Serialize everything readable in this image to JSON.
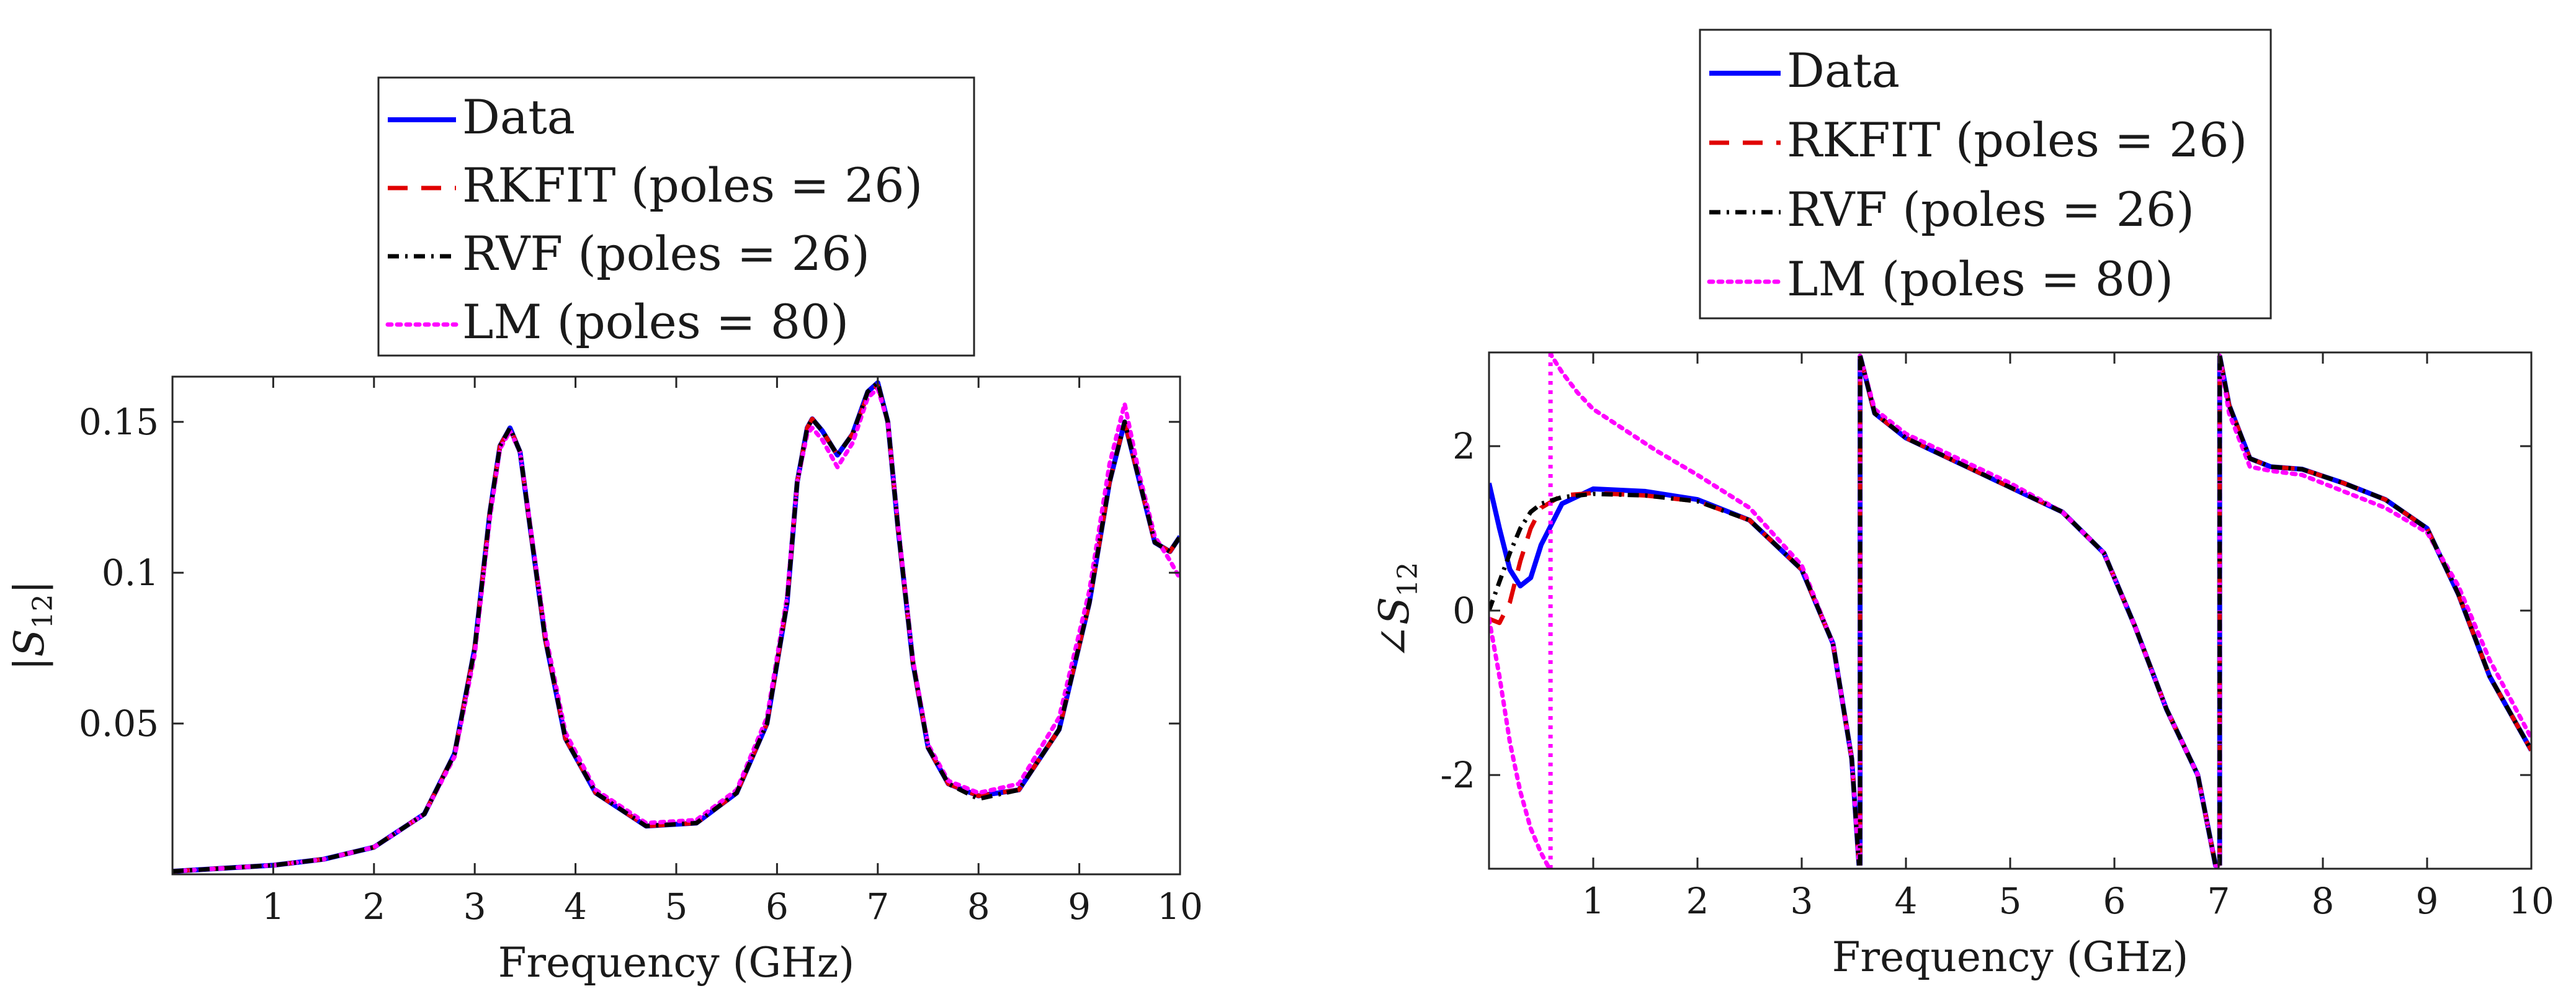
{
  "chart_data": [
    {
      "type": "line",
      "xlabel": "Frequency (GHz)",
      "ylabel": "|S",
      "ylabel_sub": "12",
      "ylabel_suffix": "|",
      "xlim": [
        0,
        10
      ],
      "ylim": [
        0,
        0.165
      ],
      "xticks": [
        1,
        2,
        3,
        4,
        5,
        6,
        7,
        8,
        9,
        10
      ],
      "xtick_labels": [
        "1",
        "2",
        "3",
        "4",
        "5",
        "6",
        "7",
        "8",
        "9",
        "10"
      ],
      "yticks": [
        0.05,
        0.1,
        0.15
      ],
      "ytick_labels": [
        "0.05",
        "0.1",
        "0.15"
      ],
      "grid": false,
      "legend_position": "top",
      "legend": [
        "Data",
        "RKFIT (poles = 26)",
        "RVF (poles = 26)",
        "LM (poles = 80)"
      ],
      "series": [
        {
          "name": "Data",
          "color": "#0000ff",
          "style": "solid",
          "x": [
            0,
            0.5,
            1,
            1.5,
            2,
            2.5,
            2.8,
            3.0,
            3.15,
            3.25,
            3.35,
            3.45,
            3.55,
            3.7,
            3.9,
            4.2,
            4.7,
            5.2,
            5.6,
            5.9,
            6.1,
            6.2,
            6.3,
            6.35,
            6.45,
            6.6,
            6.75,
            6.9,
            7.0,
            7.1,
            7.2,
            7.35,
            7.5,
            7.7,
            8.0,
            8.4,
            8.8,
            9.1,
            9.3,
            9.45,
            9.6,
            9.75,
            9.9,
            10
          ],
          "y": [
            0.001,
            0.002,
            0.003,
            0.005,
            0.009,
            0.02,
            0.04,
            0.075,
            0.12,
            0.142,
            0.148,
            0.14,
            0.115,
            0.078,
            0.045,
            0.027,
            0.016,
            0.017,
            0.027,
            0.05,
            0.09,
            0.13,
            0.148,
            0.151,
            0.147,
            0.139,
            0.146,
            0.16,
            0.163,
            0.15,
            0.115,
            0.07,
            0.042,
            0.03,
            0.026,
            0.028,
            0.048,
            0.09,
            0.13,
            0.15,
            0.13,
            0.11,
            0.107,
            0.112
          ]
        },
        {
          "name": "RKFIT (poles = 26)",
          "color": "#e00000",
          "style": "dashed",
          "x": [
            0,
            0.5,
            1,
            1.5,
            2,
            2.5,
            2.8,
            3.0,
            3.15,
            3.25,
            3.35,
            3.45,
            3.55,
            3.7,
            3.9,
            4.2,
            4.7,
            5.2,
            5.6,
            5.9,
            6.1,
            6.2,
            6.3,
            6.35,
            6.45,
            6.6,
            6.75,
            6.9,
            7.0,
            7.1,
            7.2,
            7.35,
            7.5,
            7.7,
            8.0,
            8.4,
            8.8,
            9.1,
            9.3,
            9.45,
            9.6,
            9.75,
            9.9,
            10
          ],
          "y": [
            0.001,
            0.002,
            0.003,
            0.005,
            0.009,
            0.02,
            0.04,
            0.075,
            0.12,
            0.142,
            0.148,
            0.14,
            0.115,
            0.078,
            0.045,
            0.027,
            0.016,
            0.017,
            0.027,
            0.05,
            0.09,
            0.13,
            0.148,
            0.151,
            0.147,
            0.139,
            0.146,
            0.159,
            0.162,
            0.15,
            0.115,
            0.07,
            0.042,
            0.03,
            0.026,
            0.028,
            0.048,
            0.09,
            0.13,
            0.15,
            0.13,
            0.11,
            0.107,
            0.112
          ]
        },
        {
          "name": "RVF (poles = 26)",
          "color": "#000000",
          "style": "dashdot",
          "x": [
            0,
            0.5,
            1,
            1.5,
            2,
            2.5,
            2.8,
            3.0,
            3.15,
            3.25,
            3.35,
            3.45,
            3.55,
            3.7,
            3.9,
            4.2,
            4.7,
            5.2,
            5.6,
            5.9,
            6.1,
            6.2,
            6.3,
            6.35,
            6.45,
            6.6,
            6.75,
            6.9,
            7.0,
            7.1,
            7.2,
            7.35,
            7.5,
            7.7,
            8.0,
            8.4,
            8.8,
            9.1,
            9.3,
            9.45,
            9.6,
            9.75,
            9.9,
            10
          ],
          "y": [
            0.001,
            0.002,
            0.003,
            0.005,
            0.009,
            0.02,
            0.04,
            0.075,
            0.12,
            0.142,
            0.148,
            0.14,
            0.115,
            0.078,
            0.045,
            0.027,
            0.016,
            0.017,
            0.027,
            0.05,
            0.09,
            0.13,
            0.148,
            0.151,
            0.147,
            0.139,
            0.146,
            0.16,
            0.163,
            0.15,
            0.115,
            0.07,
            0.042,
            0.03,
            0.025,
            0.028,
            0.048,
            0.09,
            0.13,
            0.15,
            0.13,
            0.11,
            0.107,
            0.112
          ]
        },
        {
          "name": "LM (poles = 80)",
          "color": "#ff00ff",
          "style": "dotted",
          "x": [
            0,
            0.5,
            1,
            1.5,
            2,
            2.5,
            2.8,
            3.0,
            3.15,
            3.25,
            3.35,
            3.45,
            3.55,
            3.7,
            3.9,
            4.2,
            4.7,
            5.2,
            5.6,
            5.9,
            6.1,
            6.2,
            6.3,
            6.35,
            6.45,
            6.6,
            6.75,
            6.9,
            7.0,
            7.1,
            7.2,
            7.35,
            7.5,
            7.7,
            8.0,
            8.4,
            8.8,
            9.1,
            9.3,
            9.45,
            9.6,
            9.75,
            9.9,
            10
          ],
          "y": [
            0.001,
            0.002,
            0.003,
            0.005,
            0.009,
            0.02,
            0.039,
            0.073,
            0.118,
            0.141,
            0.147,
            0.14,
            0.116,
            0.08,
            0.047,
            0.028,
            0.017,
            0.018,
            0.028,
            0.052,
            0.092,
            0.13,
            0.146,
            0.148,
            0.144,
            0.135,
            0.143,
            0.158,
            0.161,
            0.15,
            0.116,
            0.071,
            0.043,
            0.031,
            0.027,
            0.03,
            0.052,
            0.094,
            0.136,
            0.156,
            0.132,
            0.112,
            0.104,
            0.098
          ]
        }
      ]
    },
    {
      "type": "line",
      "xlabel": "Frequency (GHz)",
      "ylabel": "∠S",
      "ylabel_sub": "12",
      "ylabel_suffix": "",
      "xlim": [
        0,
        10
      ],
      "ylim": [
        -3.14,
        3.14
      ],
      "xticks": [
        1,
        2,
        3,
        4,
        5,
        6,
        7,
        8,
        9,
        10
      ],
      "xtick_labels": [
        "1",
        "2",
        "3",
        "4",
        "5",
        "6",
        "7",
        "8",
        "9",
        "10"
      ],
      "yticks": [
        -2,
        0,
        2
      ],
      "ytick_labels": [
        "-2",
        "0",
        "2"
      ],
      "grid": false,
      "legend_position": "top",
      "legend": [
        "Data",
        "RKFIT (poles = 26)",
        "RVF (poles = 26)",
        "LM (poles = 80)"
      ],
      "series": [
        {
          "name": "Data",
          "color": "#0000ff",
          "style": "solid",
          "x": [
            0,
            0.1,
            0.2,
            0.3,
            0.4,
            0.5,
            0.7,
            1.0,
            1.5,
            2.0,
            2.5,
            3.0,
            3.3,
            3.48,
            3.55,
            3.56,
            3.7,
            4.0,
            4.5,
            5.0,
            5.5,
            5.9,
            6.2,
            6.5,
            6.8,
            6.97,
            7.0,
            7.01,
            7.1,
            7.3,
            7.5,
            7.8,
            8.2,
            8.6,
            9.0,
            9.3,
            9.6,
            10
          ],
          "y": [
            1.55,
            1.0,
            0.5,
            0.3,
            0.4,
            0.8,
            1.3,
            1.48,
            1.45,
            1.35,
            1.1,
            0.5,
            -0.4,
            -1.8,
            -3.1,
            3.1,
            2.4,
            2.1,
            1.8,
            1.5,
            1.2,
            0.7,
            -0.2,
            -1.2,
            -2.0,
            -3.1,
            -3.1,
            3.1,
            2.5,
            1.85,
            1.75,
            1.72,
            1.55,
            1.35,
            1.0,
            0.2,
            -0.8,
            -1.7
          ]
        },
        {
          "name": "RKFIT (poles = 26)",
          "color": "#e00000",
          "style": "dashed",
          "x": [
            0,
            0.1,
            0.2,
            0.3,
            0.4,
            0.5,
            0.7,
            1.0,
            1.5,
            2.0,
            2.5,
            3.0,
            3.3,
            3.48,
            3.55,
            3.56,
            3.7,
            4.0,
            4.5,
            5.0,
            5.5,
            5.9,
            6.2,
            6.5,
            6.8,
            6.97,
            7.0,
            7.01,
            7.1,
            7.3,
            7.5,
            7.8,
            8.2,
            8.6,
            9.0,
            9.3,
            9.6,
            10
          ],
          "y": [
            -0.1,
            -0.15,
            0.1,
            0.6,
            1.0,
            1.25,
            1.4,
            1.43,
            1.4,
            1.33,
            1.1,
            0.5,
            -0.4,
            -1.8,
            -3.1,
            3.1,
            2.4,
            2.1,
            1.8,
            1.5,
            1.2,
            0.7,
            -0.2,
            -1.2,
            -2.0,
            -3.1,
            -3.1,
            3.1,
            2.5,
            1.85,
            1.75,
            1.72,
            1.55,
            1.35,
            1.0,
            0.2,
            -0.8,
            -1.7
          ]
        },
        {
          "name": "RVF (poles = 26)",
          "color": "#000000",
          "style": "dashdot",
          "x": [
            0,
            0.1,
            0.2,
            0.3,
            0.4,
            0.5,
            0.7,
            1.0,
            1.5,
            2.0,
            2.5,
            3.0,
            3.3,
            3.48,
            3.55,
            3.56,
            3.7,
            4.0,
            4.5,
            5.0,
            5.5,
            5.9,
            6.2,
            6.5,
            6.8,
            6.97,
            7.0,
            7.01,
            7.1,
            7.3,
            7.5,
            7.8,
            8.2,
            8.6,
            9.0,
            9.3,
            9.6,
            10
          ],
          "y": [
            0.0,
            0.35,
            0.7,
            1.0,
            1.2,
            1.3,
            1.38,
            1.42,
            1.4,
            1.33,
            1.1,
            0.5,
            -0.4,
            -1.8,
            -3.1,
            3.1,
            2.4,
            2.1,
            1.8,
            1.5,
            1.2,
            0.7,
            -0.2,
            -1.2,
            -2.0,
            -3.1,
            -3.1,
            3.1,
            2.5,
            1.85,
            1.75,
            1.72,
            1.55,
            1.35,
            1.0,
            0.2,
            -0.8,
            -1.7
          ]
        },
        {
          "name": "LM (poles = 80)",
          "color": "#ff00ff",
          "style": "dotted",
          "x": [
            0,
            0.1,
            0.2,
            0.3,
            0.4,
            0.5,
            0.58,
            0.59,
            0.6,
            0.7,
            0.85,
            1.0,
            1.3,
            1.6,
            2.0,
            2.5,
            3.0,
            3.3,
            3.48,
            3.55,
            3.56,
            3.7,
            4.0,
            4.5,
            5.0,
            5.5,
            5.9,
            6.2,
            6.5,
            6.8,
            6.97,
            7.0,
            7.01,
            7.1,
            7.3,
            7.5,
            7.8,
            8.2,
            8.6,
            9.0,
            9.3,
            9.6,
            10
          ],
          "y": [
            -0.1,
            -0.8,
            -1.6,
            -2.2,
            -2.65,
            -2.95,
            -3.14,
            3.14,
            3.1,
            2.9,
            2.65,
            2.45,
            2.2,
            1.95,
            1.65,
            1.25,
            0.55,
            -0.4,
            -1.8,
            -3.1,
            3.1,
            2.45,
            2.15,
            1.85,
            1.55,
            1.2,
            0.7,
            -0.2,
            -1.2,
            -2.0,
            -3.1,
            -3.1,
            3.1,
            2.4,
            1.75,
            1.7,
            1.65,
            1.45,
            1.25,
            0.95,
            0.3,
            -0.6,
            -1.55
          ]
        }
      ]
    }
  ]
}
